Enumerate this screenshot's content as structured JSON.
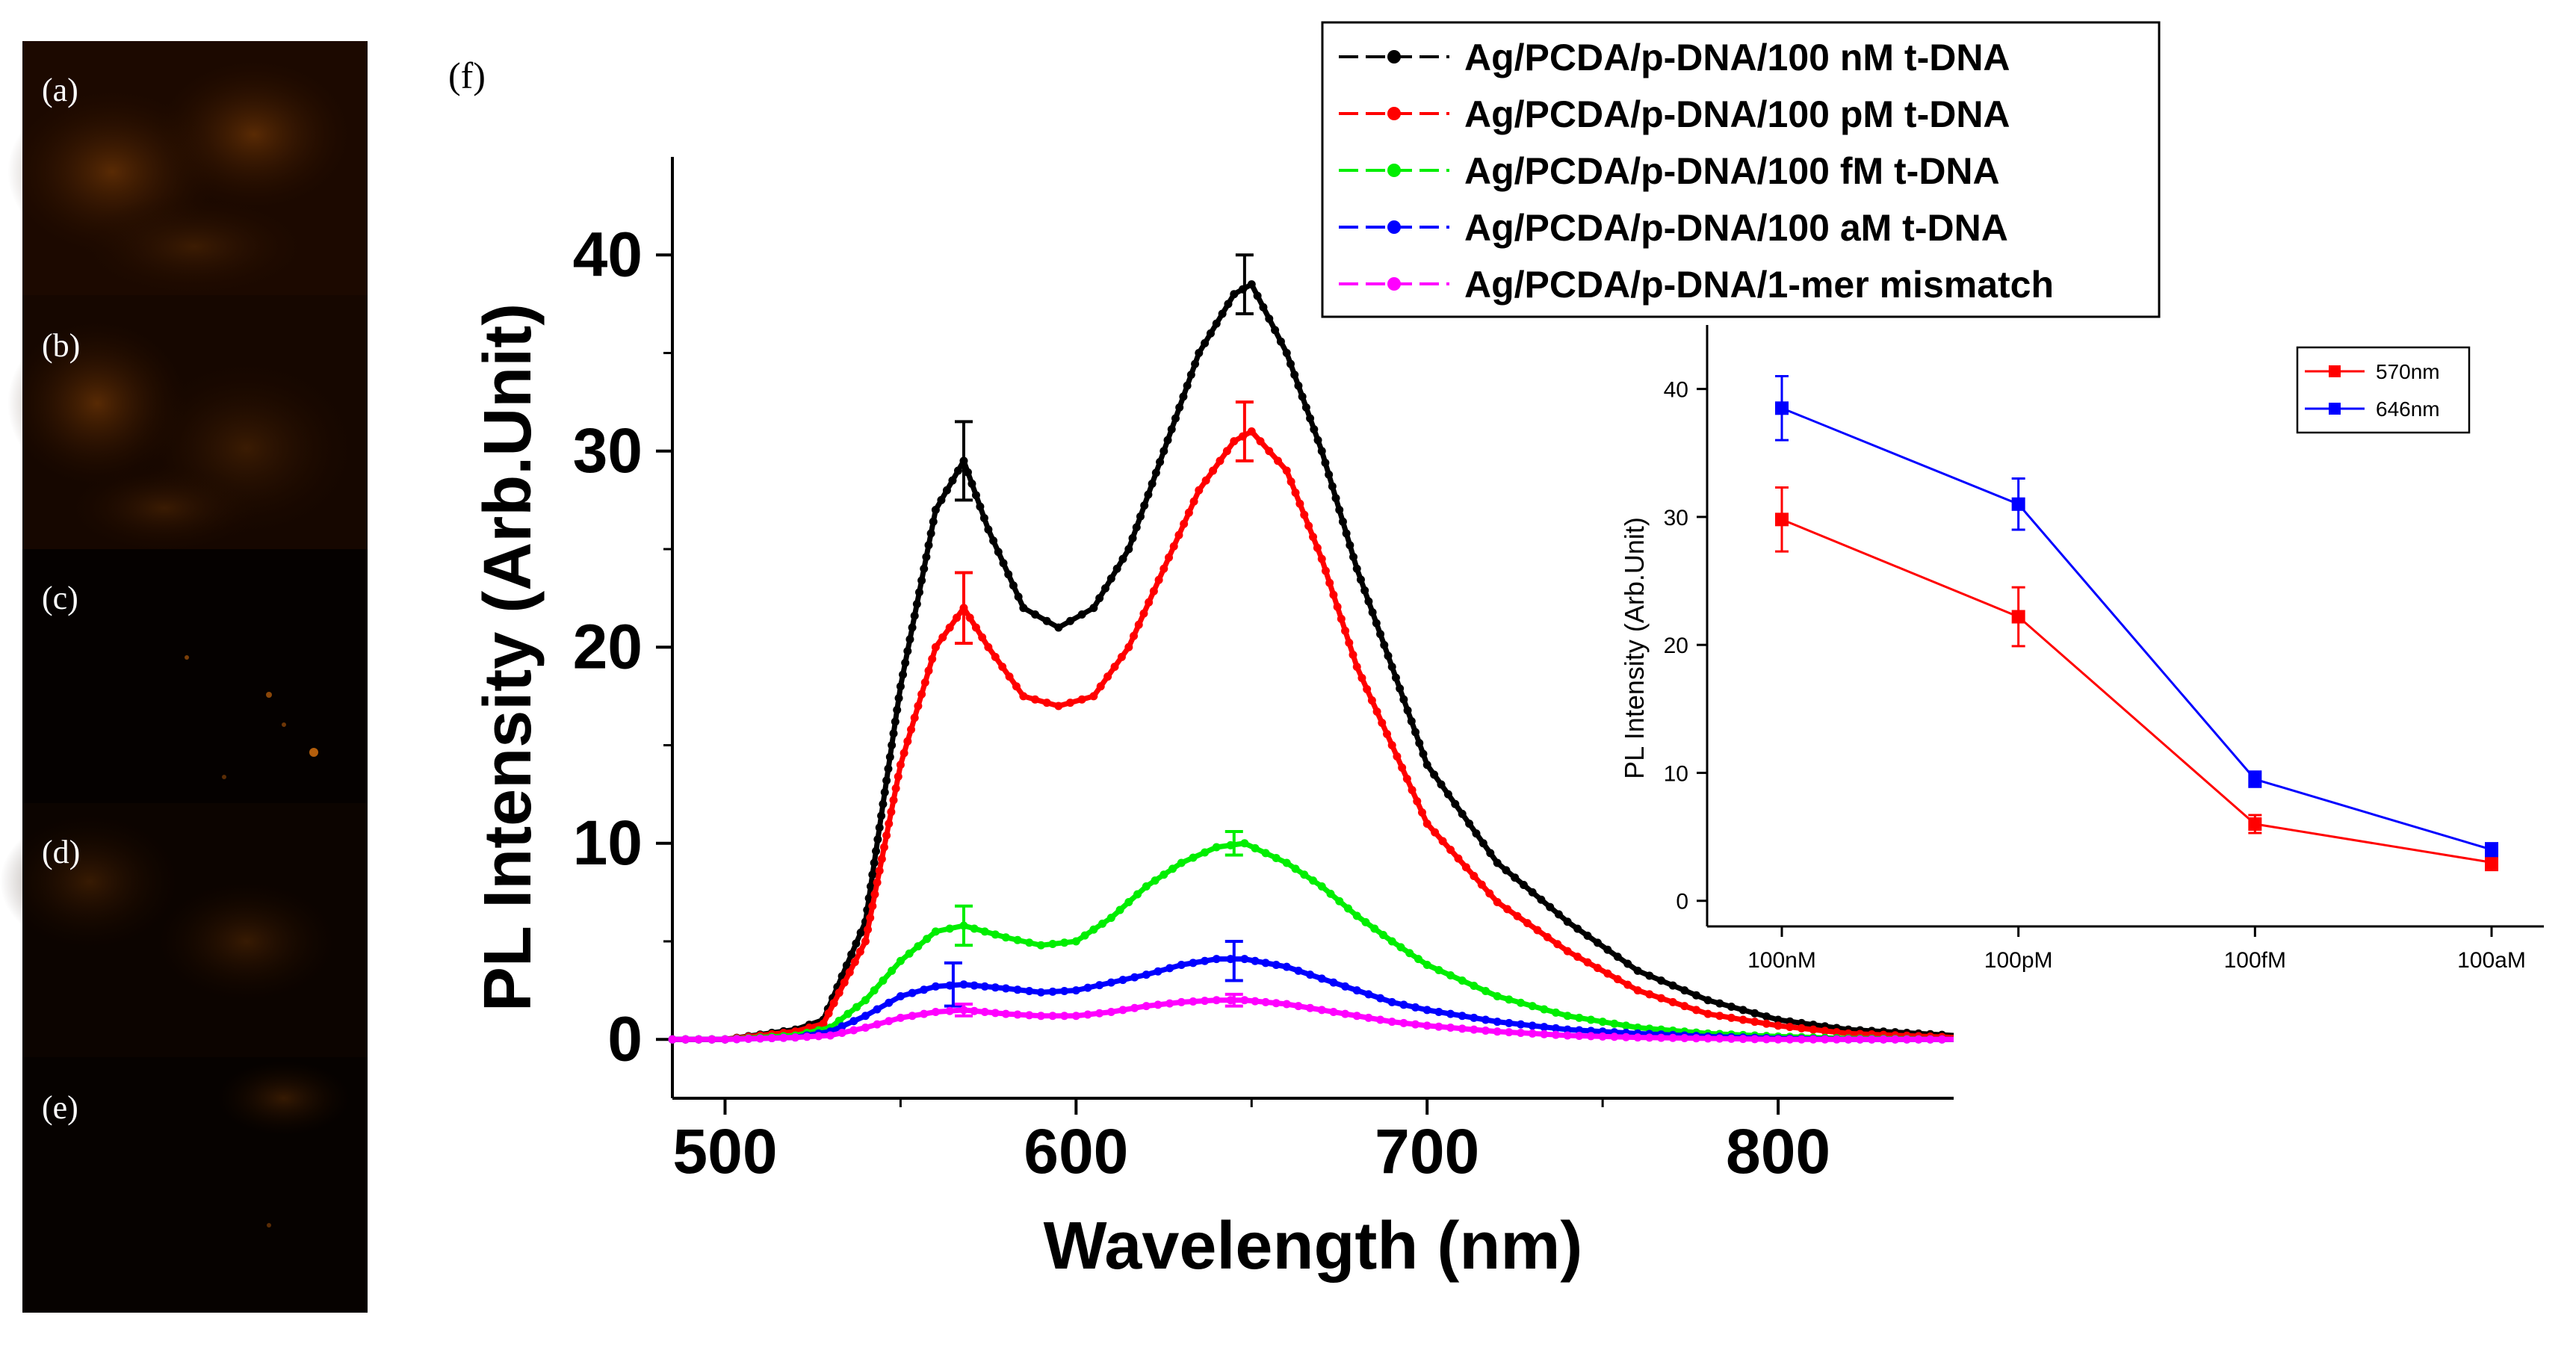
{
  "figure": {
    "panel_labels": [
      "(a)",
      "(b)",
      "(c)",
      "(d)",
      "(e)"
    ],
    "main_panel_label": "(f)"
  },
  "chart_data": [
    {
      "type": "line",
      "title": "",
      "xlabel": "Wavelength (nm)",
      "ylabel": "PL Intensity (Arb.Unit)",
      "xlim": [
        485,
        850
      ],
      "ylim": [
        -3,
        45
      ],
      "xticks": [
        500,
        600,
        700,
        800
      ],
      "yticks": [
        0,
        10,
        20,
        30,
        40
      ],
      "legend_position": "top-right",
      "series": [
        {
          "name": "Ag/PCDA/p-DNA/100 nM t-DNA",
          "color": "#000000",
          "x": [
            485,
            500,
            520,
            528,
            540,
            550,
            560,
            568,
            575,
            585,
            595,
            605,
            615,
            625,
            635,
            645,
            650,
            660,
            670,
            680,
            690,
            700,
            720,
            740,
            760,
            780,
            800,
            820,
            850
          ],
          "y": [
            0,
            0,
            0.5,
            1,
            6,
            18,
            27,
            29.5,
            26,
            22,
            21,
            22,
            25,
            30,
            35,
            38,
            38.5,
            35,
            30,
            24,
            19,
            14,
            9,
            6,
            3.5,
            2,
            1,
            0.5,
            0.2
          ],
          "error_bars": [
            {
              "x": 568,
              "y": 29.5,
              "err": 2
            },
            {
              "x": 648,
              "y": 38.5,
              "err": 1.5
            }
          ]
        },
        {
          "name": "Ag/PCDA/p-DNA/100 pM t-DNA",
          "color": "#ff0000",
          "x": [
            485,
            500,
            520,
            528,
            540,
            550,
            560,
            568,
            575,
            585,
            595,
            605,
            615,
            625,
            635,
            645,
            650,
            660,
            670,
            680,
            690,
            700,
            720,
            740,
            760,
            780,
            800,
            820,
            850
          ],
          "y": [
            0,
            0,
            0.4,
            0.8,
            5,
            14,
            20,
            22,
            20,
            17.5,
            17,
            17.5,
            20,
            24,
            28,
            30.5,
            31,
            29,
            24.5,
            19,
            15,
            11,
            7,
            4.5,
            2.5,
            1.3,
            0.7,
            0.3,
            0.1
          ],
          "error_bars": [
            {
              "x": 568,
              "y": 22,
              "err": 1.8
            },
            {
              "x": 648,
              "y": 31,
              "err": 1.5
            }
          ]
        },
        {
          "name": "Ag/PCDA/p-DNA/100 fM t-DNA",
          "color": "#00ee00",
          "x": [
            485,
            500,
            520,
            530,
            540,
            550,
            560,
            568,
            580,
            590,
            600,
            610,
            620,
            630,
            640,
            648,
            660,
            670,
            680,
            690,
            700,
            720,
            740,
            760,
            780,
            800,
            820,
            850
          ],
          "y": [
            0,
            0,
            0.2,
            0.6,
            2,
            4,
            5.5,
            5.8,
            5.2,
            4.8,
            5,
            6.2,
            7.8,
            9,
            9.8,
            10,
            9,
            7.8,
            6.3,
            5,
            3.8,
            2.2,
            1.2,
            0.6,
            0.3,
            0.15,
            0.05,
            0
          ],
          "error_bars": [
            {
              "x": 568,
              "y": 5.8,
              "err": 1
            },
            {
              "x": 645,
              "y": 10,
              "err": 0.6
            }
          ]
        },
        {
          "name": "Ag/PCDA/p-DNA/100 aM t-DNA",
          "color": "#0000ff",
          "x": [
            485,
            500,
            520,
            530,
            540,
            550,
            560,
            568,
            580,
            590,
            600,
            610,
            620,
            630,
            640,
            648,
            660,
            670,
            680,
            690,
            700,
            720,
            740,
            760,
            780,
            800,
            820,
            850
          ],
          "y": [
            0,
            0,
            0.1,
            0.4,
            1.2,
            2.2,
            2.7,
            2.8,
            2.6,
            2.4,
            2.5,
            2.9,
            3.3,
            3.8,
            4.1,
            4.1,
            3.7,
            3.1,
            2.5,
            1.9,
            1.5,
            0.9,
            0.5,
            0.3,
            0.15,
            0.05,
            0,
            0
          ],
          "error_bars": [
            {
              "x": 565,
              "y": 2.8,
              "err": 1.1
            },
            {
              "x": 645,
              "y": 4,
              "err": 1
            }
          ]
        },
        {
          "name": "Ag/PCDA/p-DNA/1-mer mismatch",
          "color": "#ff00ff",
          "x": [
            485,
            500,
            520,
            530,
            540,
            550,
            560,
            568,
            580,
            590,
            600,
            610,
            620,
            630,
            640,
            648,
            660,
            670,
            680,
            690,
            700,
            720,
            740,
            760,
            780,
            800,
            820,
            850
          ],
          "y": [
            0,
            0,
            0.1,
            0.2,
            0.6,
            1.1,
            1.4,
            1.5,
            1.3,
            1.2,
            1.2,
            1.4,
            1.7,
            1.9,
            2,
            2,
            1.8,
            1.5,
            1.2,
            0.9,
            0.7,
            0.4,
            0.2,
            0.1,
            0.05,
            0,
            0,
            0
          ],
          "error_bars": [
            {
              "x": 568,
              "y": 1.5,
              "err": 0.3
            },
            {
              "x": 645,
              "y": 2,
              "err": 0.3
            }
          ]
        }
      ]
    },
    {
      "type": "line",
      "title": "",
      "xlabel": "",
      "ylabel": "PL Intensity (Arb.Unit)",
      "categories": [
        "100nM",
        "100pM",
        "100fM",
        "100aM"
      ],
      "ylim": [
        -2,
        45
      ],
      "yticks": [
        0,
        10,
        20,
        30,
        40
      ],
      "legend_position": "top-right",
      "series": [
        {
          "name": "570nm",
          "color": "#ff0000",
          "values": [
            29.8,
            22.2,
            6.0,
            3.0
          ],
          "errors": [
            2.5,
            2.3,
            0.7,
            0.6
          ]
        },
        {
          "name": "646nm",
          "color": "#0000ff",
          "values": [
            38.5,
            31.0,
            9.5,
            4.0
          ],
          "errors": [
            2.5,
            2.0,
            0.6,
            0.5
          ]
        }
      ]
    }
  ]
}
